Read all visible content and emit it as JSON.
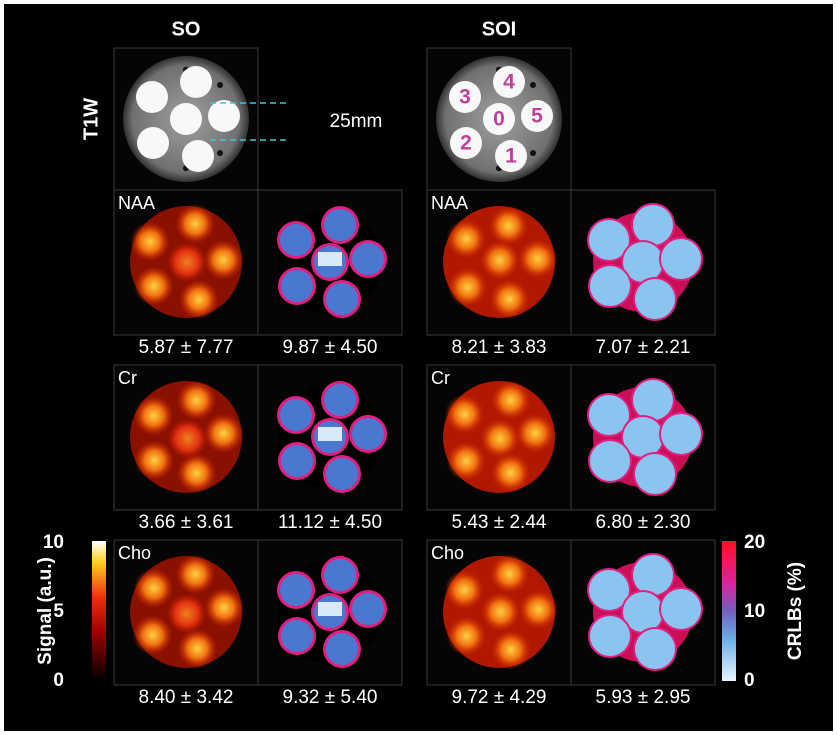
{
  "columns": {
    "so": "SO",
    "soi": "SOI"
  },
  "t1w": {
    "label": "T1W",
    "distance": "25mm",
    "vial_labels": [
      "3",
      "4",
      "0",
      "5",
      "2",
      "1"
    ]
  },
  "rows": [
    {
      "metabolite": "NAA",
      "stats": [
        "5.87 ± 7.77",
        "9.87 ± 4.50",
        "8.21 ± 3.83",
        "7.07 ± 2.21"
      ]
    },
    {
      "metabolite": "Cr",
      "stats": [
        "3.66 ± 3.61",
        "11.12 ± 4.50",
        "5.43 ± 2.44",
        "6.80 ± 2.30"
      ]
    },
    {
      "metabolite": "Cho",
      "stats": [
        "8.40 ± 3.42",
        "9.32 ± 5.40",
        "9.72 ± 4.29",
        "5.93 ± 2.95"
      ]
    }
  ],
  "colorbars": [
    {
      "label": "Signal (a.u.)",
      "lim": [
        0,
        10
      ],
      "ticks": [
        0,
        5,
        10
      ]
    },
    {
      "label": "CRLBs (%)",
      "lim": [
        0,
        20
      ],
      "ticks": [
        0,
        10,
        20
      ]
    }
  ]
}
